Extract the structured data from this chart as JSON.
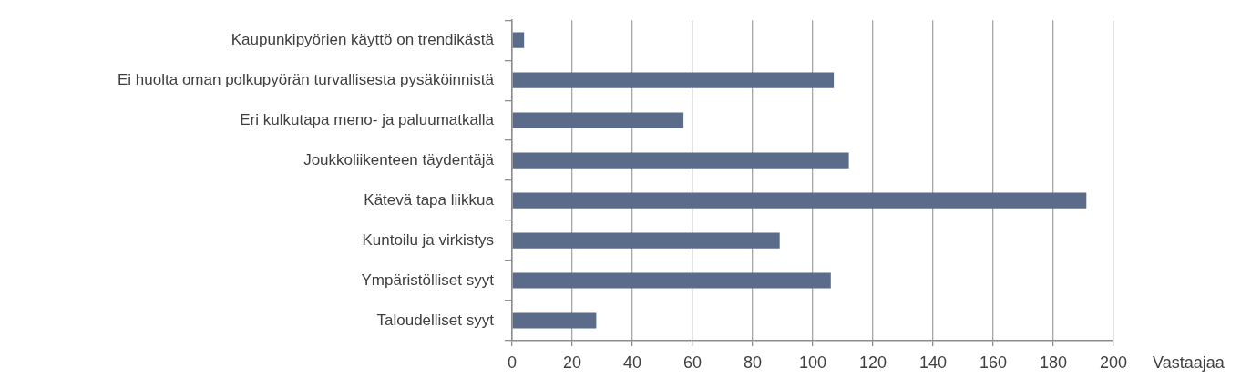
{
  "chart_data": {
    "type": "bar",
    "orientation": "horizontal",
    "categories": [
      "Kaupunkipyörien käyttö on trendikästä",
      "Ei huolta oman polkupyörän turvallisesta pysäköinnistä",
      "Eri kulkutapa meno- ja paluumatkalla",
      "Joukkoliikenteen täydentäjä",
      "Kätevä tapa liikkua",
      "Kuntoilu ja virkistys",
      "Ympäristölliset syyt",
      "Taloudelliset syyt"
    ],
    "values": [
      4,
      107,
      57,
      112,
      191,
      89,
      106,
      28
    ],
    "color": "#5b6b8a",
    "xlabel": "Vastaajaa",
    "xlim": [
      0,
      200
    ],
    "xticks": [
      0,
      20,
      40,
      60,
      80,
      100,
      120,
      140,
      160,
      180,
      200
    ],
    "grid": "x"
  }
}
